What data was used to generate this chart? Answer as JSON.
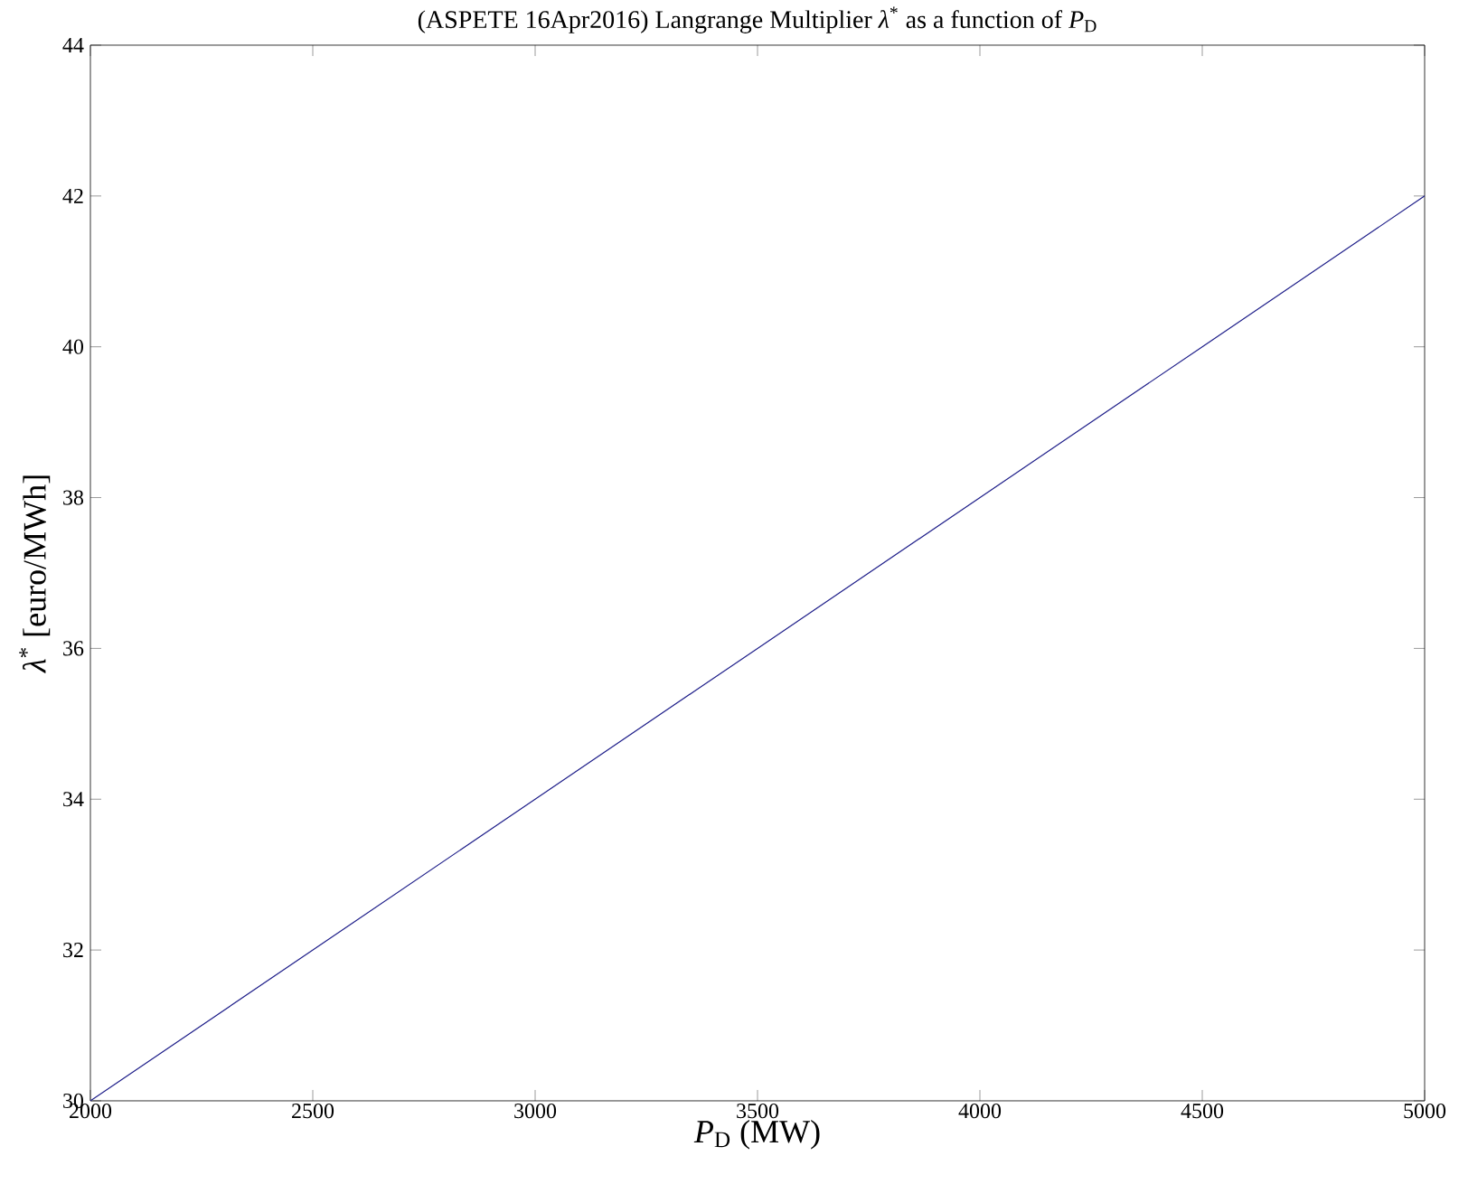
{
  "chart_data": {
    "type": "line",
    "title": "(ASPETE 16Apr2016) Langrange Multiplier *λ*$^{*}$ as a function of *P*$_{D}$",
    "xlabel": "*P*$_{D}$ (MW)",
    "ylabel": "*λ*$^{*}$ [euro/MWh]",
    "x": [
      2000,
      2500,
      3000,
      3500,
      4000,
      4500,
      5000
    ],
    "series": [
      {
        "color": "#1f1f8a",
        "values": [
          30,
          32,
          34,
          36,
          38,
          40,
          42
        ]
      }
    ],
    "xlim": [
      2000,
      5000
    ],
    "ylim": [
      30,
      44
    ],
    "xticks": [
      2000,
      2500,
      3000,
      3500,
      4000,
      4500,
      5000
    ],
    "yticks": [
      30,
      32,
      34,
      36,
      38,
      40,
      42,
      44
    ],
    "grid": false,
    "marker": "none",
    "line_style": "solid"
  }
}
